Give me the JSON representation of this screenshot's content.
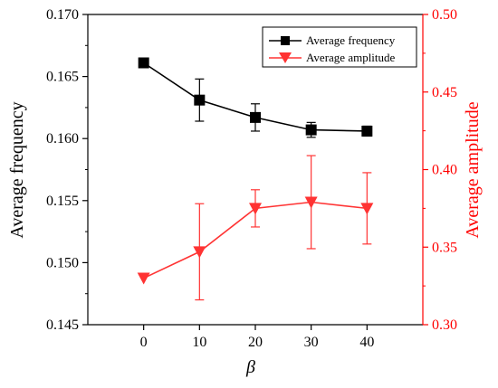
{
  "chart_data": {
    "type": "line",
    "x": [
      0,
      10,
      20,
      30,
      40
    ],
    "xlabel": "β",
    "xlim": [
      -10,
      50
    ],
    "xticks": [
      0,
      10,
      20,
      30,
      40
    ],
    "y_left": {
      "label": "Average frequency",
      "lim": [
        0.145,
        0.17
      ],
      "ticks": [
        "0.145",
        "0.150",
        "0.155",
        "0.160",
        "0.165",
        "0.170"
      ],
      "color": "#000000"
    },
    "y_right": {
      "label": "Average amplitude",
      "lim": [
        0.3,
        0.5
      ],
      "ticks": [
        "0.30",
        "0.35",
        "0.40",
        "0.45",
        "0.50"
      ],
      "color": "#ff0000"
    },
    "series": [
      {
        "name": "Average frequency",
        "axis": "left",
        "color": "#000000",
        "marker": "square",
        "values": [
          0.1661,
          0.1631,
          0.1617,
          0.1607,
          0.1606
        ],
        "errors": [
          0.0,
          0.0017,
          0.0011,
          0.0006,
          0.0004
        ]
      },
      {
        "name": "Average amplitude",
        "axis": "right",
        "color": "#ff3333",
        "marker": "triangle-down",
        "values": [
          0.33,
          0.347,
          0.375,
          0.379,
          0.375
        ],
        "errors": [
          0.0,
          0.031,
          0.012,
          0.03,
          0.023
        ]
      }
    ],
    "legend_position": "top-right",
    "grid": false
  }
}
